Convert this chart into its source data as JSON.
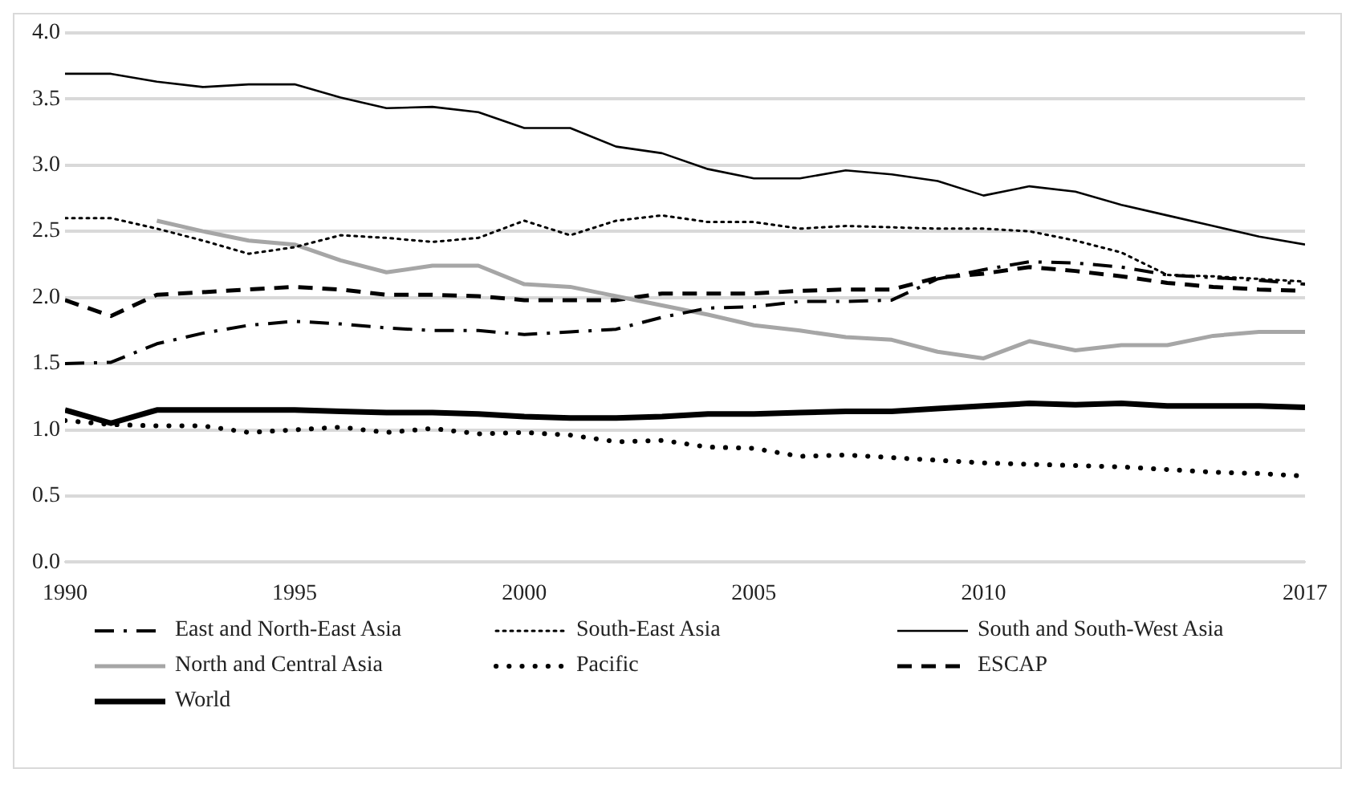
{
  "chart_data": {
    "type": "line",
    "x": [
      1990,
      1991,
      1992,
      1993,
      1994,
      1995,
      1996,
      1997,
      1998,
      1999,
      2000,
      2001,
      2002,
      2003,
      2004,
      2005,
      2006,
      2007,
      2008,
      2009,
      2010,
      2011,
      2012,
      2013,
      2014,
      2015,
      2016,
      2017
    ],
    "xlim": [
      1990,
      2017
    ],
    "xticks": [
      1990,
      1995,
      2000,
      2005,
      2010,
      2017
    ],
    "ylim": [
      0,
      4
    ],
    "yticks": [
      {
        "value": 0,
        "label": "0.0"
      },
      {
        "value": 0.5,
        "label": "0.5"
      },
      {
        "value": 1,
        "label": "1.0"
      },
      {
        "value": 1.5,
        "label": "1.5"
      },
      {
        "value": 2,
        "label": "2.0"
      },
      {
        "value": 2.5,
        "label": "2.5"
      },
      {
        "value": 3,
        "label": "3.0"
      },
      {
        "value": 3.5,
        "label": "3.5"
      },
      {
        "value": 4,
        "label": "4.0"
      }
    ],
    "grid": "y",
    "legend": "bottom",
    "marker": "none",
    "series": [
      {
        "name": "East and North-East Asia",
        "color": "#000000",
        "line_style": "dashdot",
        "values": [
          1.5,
          1.51,
          1.65,
          1.73,
          1.79,
          1.82,
          1.8,
          1.77,
          1.75,
          1.75,
          1.72,
          1.74,
          1.76,
          1.85,
          1.92,
          1.93,
          1.97,
          1.97,
          1.98,
          2.14,
          2.21,
          2.27,
          2.26,
          2.23,
          2.17,
          2.15,
          2.13,
          2.1
        ]
      },
      {
        "name": "South-East Asia",
        "color": "#000000",
        "line_style": "dotted",
        "values": [
          2.6,
          2.6,
          2.52,
          2.43,
          2.33,
          2.38,
          2.47,
          2.45,
          2.42,
          2.45,
          2.58,
          2.47,
          2.58,
          2.62,
          2.57,
          2.57,
          2.52,
          2.54,
          2.53,
          2.52,
          2.52,
          2.5,
          2.43,
          2.34,
          2.17,
          2.16,
          2.14,
          2.12
        ]
      },
      {
        "name": "South and South-West Asia",
        "color": "#000000",
        "line_style": "solid",
        "values": [
          3.69,
          3.69,
          3.63,
          3.59,
          3.61,
          3.61,
          3.51,
          3.43,
          3.44,
          3.4,
          3.28,
          3.28,
          3.14,
          3.09,
          2.97,
          2.9,
          2.9,
          2.96,
          2.93,
          2.88,
          2.77,
          2.84,
          2.8,
          2.7,
          2.62,
          2.54,
          2.46,
          2.4
        ]
      },
      {
        "name": "North and Central Asia",
        "color": "#a6a6a6",
        "line_style": "solid",
        "values": [
          null,
          null,
          2.58,
          2.5,
          2.43,
          2.4,
          2.28,
          2.19,
          2.24,
          2.24,
          2.1,
          2.08,
          2.01,
          1.94,
          1.87,
          1.79,
          1.75,
          1.7,
          1.68,
          1.59,
          1.54,
          1.67,
          1.6,
          1.64,
          1.64,
          1.71,
          1.74,
          1.74
        ]
      },
      {
        "name": "Pacific",
        "color": "#000000",
        "line_style": "dotted",
        "values": [
          1.07,
          1.04,
          1.03,
          1.03,
          0.98,
          1.0,
          1.02,
          0.98,
          1.01,
          0.97,
          0.98,
          0.96,
          0.91,
          0.92,
          0.87,
          0.86,
          0.8,
          0.81,
          0.79,
          0.77,
          0.75,
          0.74,
          0.73,
          0.72,
          0.7,
          0.68,
          0.67,
          0.65
        ]
      },
      {
        "name": "ESCAP",
        "color": "#000000",
        "line_style": "dashed",
        "values": [
          1.98,
          1.86,
          2.02,
          2.04,
          2.06,
          2.08,
          2.06,
          2.02,
          2.02,
          2.01,
          1.98,
          1.98,
          1.98,
          2.03,
          2.03,
          2.03,
          2.05,
          2.06,
          2.06,
          2.15,
          2.18,
          2.23,
          2.2,
          2.16,
          2.11,
          2.08,
          2.06,
          2.05
        ]
      },
      {
        "name": "World",
        "color": "#000000",
        "line_style": "solid",
        "values": [
          1.15,
          1.05,
          1.15,
          1.15,
          1.15,
          1.15,
          1.14,
          1.13,
          1.13,
          1.12,
          1.1,
          1.09,
          1.09,
          1.1,
          1.12,
          1.12,
          1.13,
          1.14,
          1.14,
          1.16,
          1.18,
          1.2,
          1.19,
          1.2,
          1.18,
          1.18,
          1.18,
          1.17
        ]
      }
    ]
  }
}
